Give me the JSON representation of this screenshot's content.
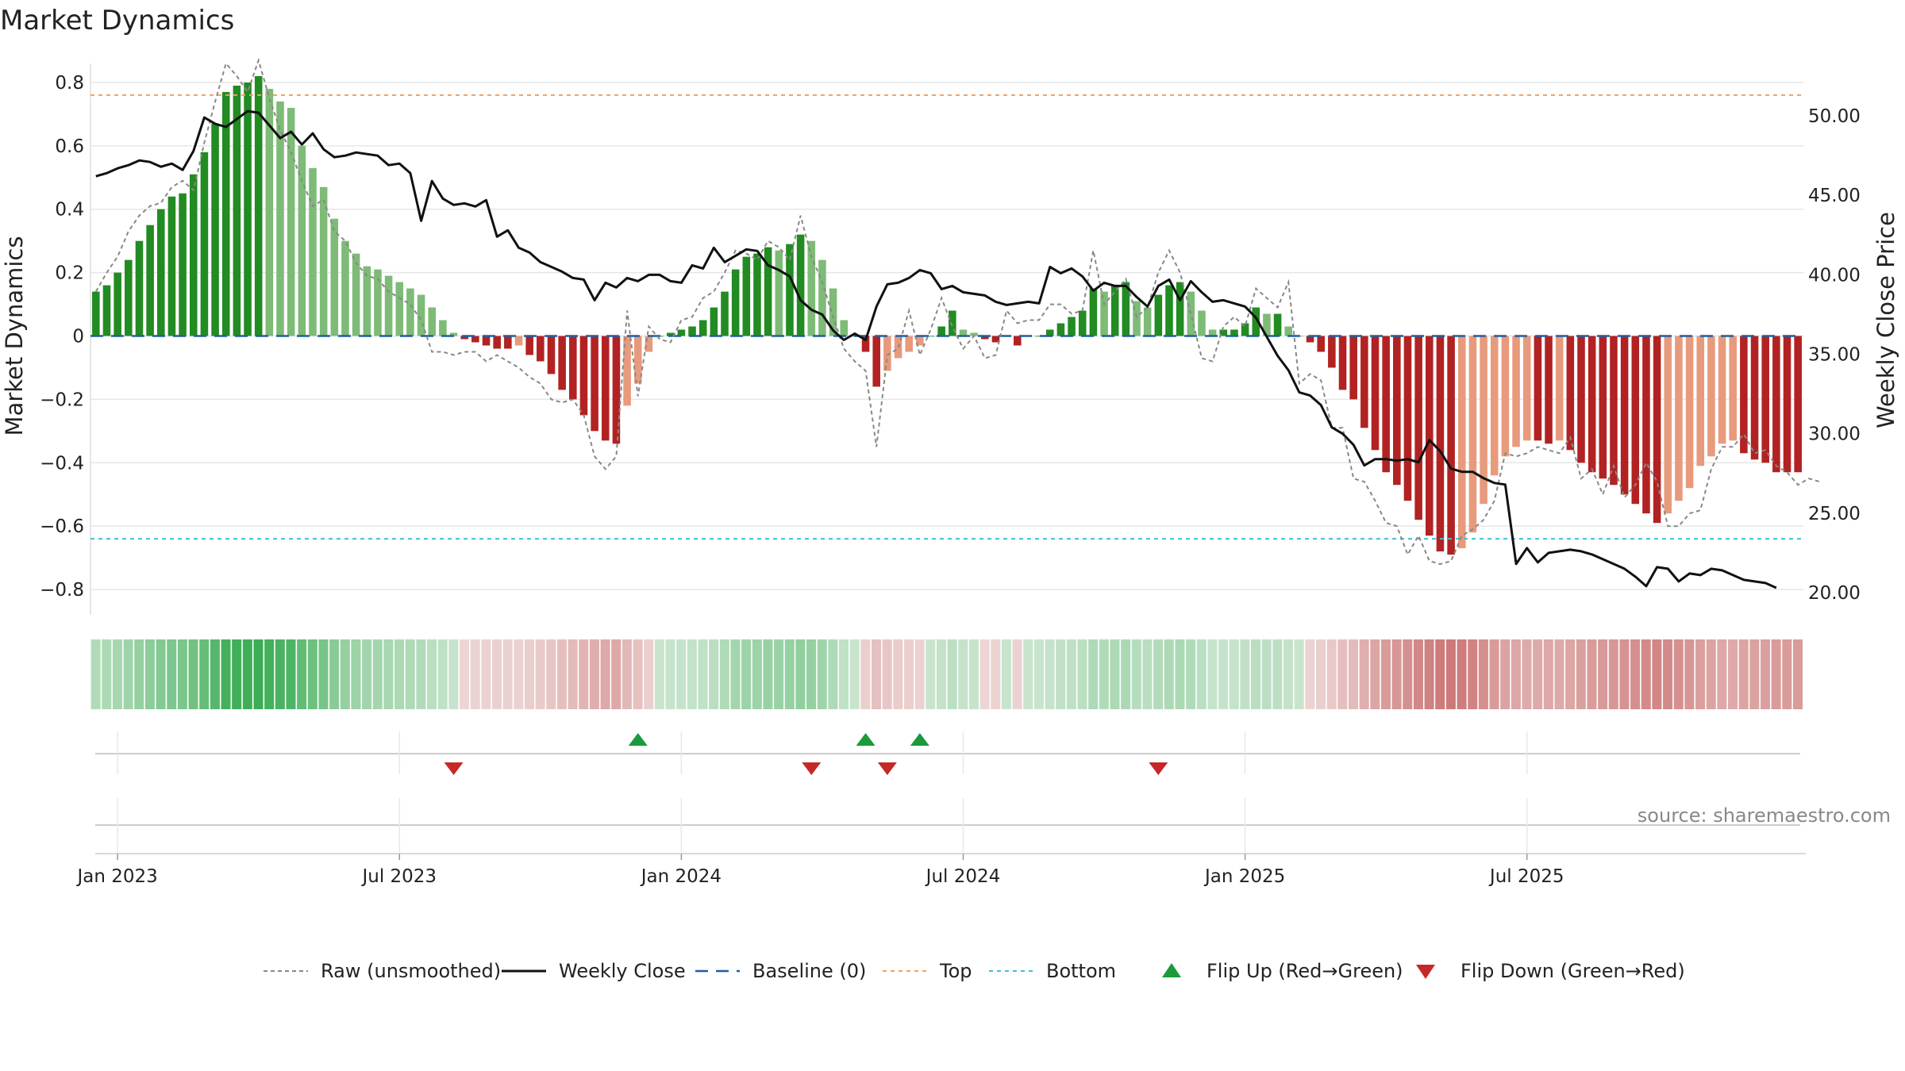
{
  "title": "Market Dynamics",
  "source": "source: sharemaestro.com",
  "colors": {
    "green_strong": "#228b22",
    "green_light": "#7dbb77",
    "red_strong": "#b22222",
    "red_light": "#e89a7c",
    "close_line": "#111111",
    "raw_line": "#888888",
    "baseline": "#1f5fa0",
    "top_line": "#f0a060",
    "bottom_line": "#3fc0d0",
    "flip_up": "#1a9a3a",
    "flip_down": "#c62828",
    "grid": "#e6e6e6"
  },
  "legend": [
    {
      "key": "raw",
      "label": "Raw (unsmoothed)"
    },
    {
      "key": "close",
      "label": "Weekly Close"
    },
    {
      "key": "baseline",
      "label": "Baseline (0)"
    },
    {
      "key": "top",
      "label": "Top"
    },
    {
      "key": "bottom",
      "label": "Bottom"
    },
    {
      "key": "flip_up",
      "label": "Flip Up (Red→Green)"
    },
    {
      "key": "flip_down",
      "label": "Flip Down (Green→Red)"
    }
  ],
  "chart_data": {
    "type": "bar",
    "title": "Market Dynamics",
    "ylabel": "Market Dynamics",
    "y2label": "Weekly Close Price",
    "ylim": [
      -0.88,
      0.88
    ],
    "y2lim": [
      18.6,
      53.7
    ],
    "y_ticks": [
      0.8,
      0.6,
      0.4,
      0.2,
      0,
      -0.2,
      -0.4,
      -0.6,
      -0.8
    ],
    "y_tick_labels": [
      "0.8",
      "0.6",
      "0.4",
      "0.2",
      "0",
      "−0.2",
      "−0.4",
      "−0.6",
      "−0.8"
    ],
    "y2_ticks": [
      50,
      45,
      40,
      35,
      30,
      25,
      20
    ],
    "y2_tick_labels": [
      "50.00",
      "45.00",
      "40.00",
      "35.00",
      "30.00",
      "25.00",
      "20.00"
    ],
    "x_ticks": [
      {
        "week": 2,
        "label": "Jan 2023"
      },
      {
        "week": 28,
        "label": "Jul 2023"
      },
      {
        "week": 54,
        "label": "Jan 2024"
      },
      {
        "week": 80,
        "label": "Jul 2024"
      },
      {
        "week": 106,
        "label": "Jan 2025"
      },
      {
        "week": 132,
        "label": "Jul 2025"
      }
    ],
    "top_threshold": 0.76,
    "bottom_threshold": -0.64,
    "baseline": 0,
    "grid": true,
    "legend_position": "bottom",
    "series": [
      {
        "name": "Market Dynamics",
        "values": [
          0.14,
          0.16,
          0.2,
          0.24,
          0.3,
          0.35,
          0.4,
          0.44,
          0.45,
          0.51,
          0.58,
          0.67,
          0.77,
          0.79,
          0.8,
          0.82,
          0.78,
          0.74,
          0.72,
          0.6,
          0.53,
          0.47,
          0.37,
          0.3,
          0.26,
          0.22,
          0.21,
          0.19,
          0.17,
          0.15,
          0.13,
          0.09,
          0.05,
          0.01,
          -0.01,
          -0.02,
          -0.03,
          -0.04,
          -0.04,
          -0.03,
          -0.06,
          -0.08,
          -0.12,
          -0.17,
          -0.2,
          -0.25,
          -0.3,
          -0.33,
          -0.34,
          -0.22,
          -0.15,
          -0.05,
          0.0,
          0.01,
          0.02,
          0.03,
          0.05,
          0.09,
          0.14,
          0.21,
          0.25,
          0.26,
          0.28,
          0.27,
          0.29,
          0.32,
          0.3,
          0.24,
          0.15,
          0.05,
          0.0,
          -0.05,
          -0.16,
          -0.11,
          -0.07,
          -0.05,
          -0.03,
          0.0,
          0.03,
          0.08,
          0.02,
          0.01,
          -0.01,
          -0.02,
          0.0,
          -0.03,
          0.0,
          0.0,
          0.02,
          0.04,
          0.06,
          0.08,
          0.15,
          0.14,
          0.16,
          0.17,
          0.11,
          0.09,
          0.13,
          0.16,
          0.17,
          0.14,
          0.08,
          0.02,
          0.02,
          0.02,
          0.04,
          0.09,
          0.07,
          0.07,
          0.03,
          0.0,
          -0.02,
          -0.05,
          -0.1,
          -0.17,
          -0.2,
          -0.29,
          -0.36,
          -0.43,
          -0.47,
          -0.52,
          -0.58,
          -0.63,
          -0.68,
          -0.69,
          -0.67,
          -0.62,
          -0.53,
          -0.44,
          -0.38,
          -0.35,
          -0.33,
          -0.33,
          -0.34,
          -0.33,
          -0.36,
          -0.4,
          -0.43,
          -0.45,
          -0.47,
          -0.5,
          -0.53,
          -0.56,
          -0.59,
          -0.56,
          -0.52,
          -0.48,
          -0.41,
          -0.38,
          -0.34,
          -0.33,
          -0.37,
          -0.39,
          -0.4,
          -0.43,
          -0.43,
          -0.43
        ]
      },
      {
        "name": "Raw (unsmoothed)",
        "values": [
          0.14,
          0.2,
          0.25,
          0.33,
          0.38,
          0.41,
          0.42,
          0.47,
          0.49,
          0.46,
          0.61,
          0.74,
          0.86,
          0.82,
          0.77,
          0.87,
          0.75,
          0.65,
          0.58,
          0.49,
          0.41,
          0.43,
          0.33,
          0.3,
          0.23,
          0.19,
          0.18,
          0.14,
          0.12,
          0.1,
          0.05,
          -0.05,
          -0.05,
          -0.06,
          -0.05,
          -0.05,
          -0.08,
          -0.06,
          -0.08,
          -0.1,
          -0.13,
          -0.15,
          -0.2,
          -0.21,
          -0.2,
          -0.25,
          -0.38,
          -0.42,
          -0.38,
          0.08,
          -0.19,
          0.03,
          -0.01,
          -0.02,
          0.05,
          0.06,
          0.12,
          0.14,
          0.2,
          0.27,
          0.26,
          0.24,
          0.3,
          0.28,
          0.24,
          0.38,
          0.25,
          0.17,
          0.06,
          -0.04,
          -0.08,
          -0.11,
          -0.35,
          -0.06,
          -0.04,
          0.08,
          -0.06,
          0.02,
          0.12,
          0.03,
          -0.04,
          0.0,
          -0.07,
          -0.06,
          0.08,
          0.04,
          0.05,
          0.05,
          0.1,
          0.1,
          0.07,
          0.08,
          0.27,
          0.1,
          0.14,
          0.18,
          0.06,
          0.09,
          0.2,
          0.27,
          0.2,
          0.07,
          -0.07,
          -0.08,
          0.03,
          0.06,
          0.03,
          0.15,
          0.12,
          0.09,
          0.17,
          -0.15,
          -0.12,
          -0.14,
          -0.29,
          -0.29,
          -0.45,
          -0.46,
          -0.52,
          -0.59,
          -0.6,
          -0.69,
          -0.63,
          -0.71,
          -0.72,
          -0.71,
          -0.63,
          -0.61,
          -0.58,
          -0.52,
          -0.37,
          -0.38,
          -0.37,
          -0.35,
          -0.36,
          -0.37,
          -0.32,
          -0.45,
          -0.42,
          -0.5,
          -0.41,
          -0.51,
          -0.47,
          -0.4,
          -0.46,
          -0.6,
          -0.6,
          -0.56,
          -0.55,
          -0.42,
          -0.35,
          -0.35,
          -0.31,
          -0.37,
          -0.36,
          -0.41,
          -0.43,
          -0.47,
          -0.45,
          -0.46
        ]
      },
      {
        "name": "Weekly Close",
        "values": [
          46.2,
          46.4,
          46.7,
          46.9,
          47.2,
          47.1,
          46.8,
          47.0,
          46.6,
          47.8,
          49.9,
          49.5,
          49.3,
          49.8,
          50.3,
          50.2,
          49.4,
          48.6,
          49.0,
          48.2,
          48.9,
          47.9,
          47.4,
          47.5,
          47.7,
          47.6,
          47.5,
          46.9,
          47.0,
          46.4,
          43.4,
          45.9,
          44.8,
          44.4,
          44.5,
          44.3,
          44.7,
          42.4,
          42.8,
          41.7,
          41.4,
          40.8,
          40.5,
          40.2,
          39.8,
          39.7,
          38.4,
          39.5,
          39.2,
          39.8,
          39.6,
          40.0,
          40.0,
          39.6,
          39.5,
          40.6,
          40.4,
          41.7,
          40.8,
          41.2,
          41.6,
          41.5,
          40.6,
          40.3,
          39.9,
          38.4,
          37.8,
          37.5,
          36.5,
          35.9,
          36.3,
          35.9,
          38.0,
          39.4,
          39.5,
          39.8,
          40.3,
          40.1,
          39.1,
          39.3,
          38.9,
          38.8,
          38.7,
          38.3,
          38.1,
          38.2,
          38.3,
          38.2,
          40.5,
          40.1,
          40.4,
          39.9,
          39.0,
          39.5,
          39.3,
          39.3,
          38.6,
          38.0,
          39.3,
          39.7,
          38.4,
          39.6,
          38.9,
          38.3,
          38.4,
          38.2,
          38.0,
          37.3,
          36.1,
          34.9,
          34.0,
          32.6,
          32.4,
          31.8,
          30.4,
          30.0,
          29.3,
          28.0,
          28.4,
          28.4,
          28.3,
          28.4,
          28.2,
          29.6,
          28.9,
          27.8,
          27.6,
          27.6,
          27.2,
          26.9,
          26.8,
          21.8,
          22.8,
          21.9,
          22.5,
          22.6,
          22.7,
          22.6,
          22.4,
          22.1,
          21.8,
          21.5,
          21.0,
          20.4,
          21.6,
          21.5,
          20.7,
          21.2,
          21.1,
          21.5,
          21.4,
          21.1,
          20.8,
          20.7,
          20.6,
          20.3
        ]
      }
    ],
    "flip_up_weeks": [
      50,
      71,
      76
    ],
    "flip_down_weeks": [
      33,
      66,
      73,
      98
    ]
  }
}
